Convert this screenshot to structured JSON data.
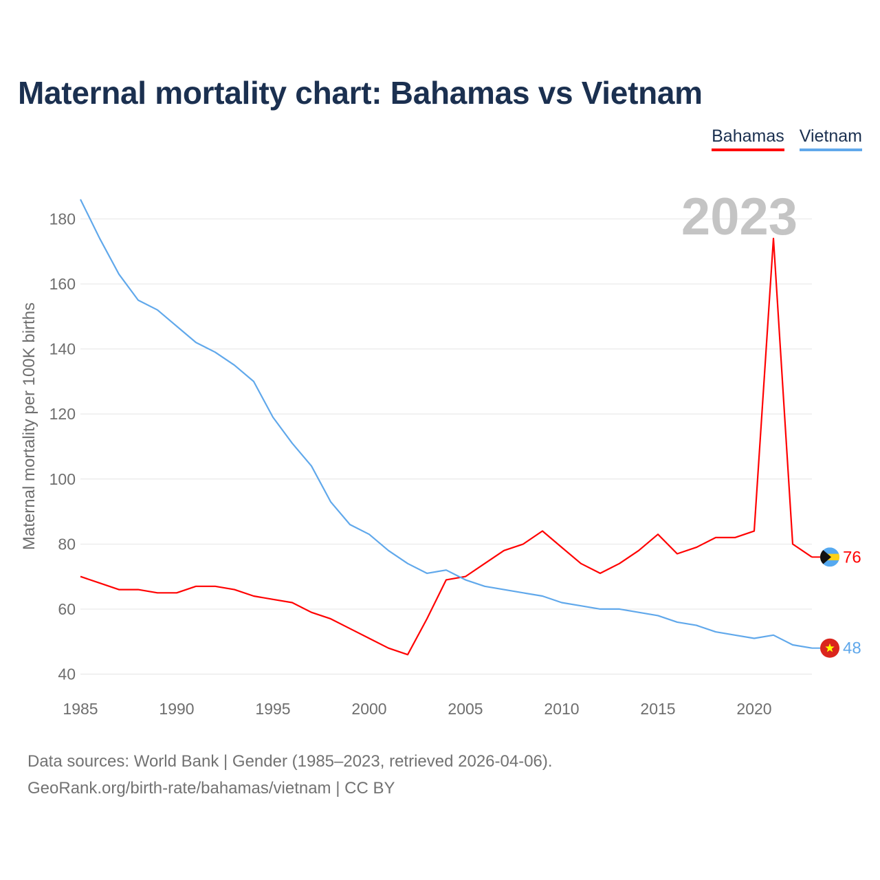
{
  "title": "Maternal mortality chart: Bahamas vs Vietnam",
  "legend": [
    {
      "label": "Bahamas",
      "color": "#ff0000"
    },
    {
      "label": "Vietnam",
      "color": "#60a8eb"
    }
  ],
  "year_label": "2023",
  "source": {
    "line1": "Data sources: World Bank | Gender (1985–2023, retrieved 2026-04-06).",
    "line2": "GeoRank.org/birth-rate/bahamas/vietnam | CC BY"
  },
  "chart_data": {
    "type": "line",
    "title": "Maternal mortality chart: Bahamas vs Vietnam",
    "xlabel": "",
    "ylabel": "Maternal mortality per 100K births",
    "xlim": [
      1985,
      2023
    ],
    "ylim": [
      38,
      186
    ],
    "x_ticks": [
      1985,
      1990,
      1995,
      2000,
      2005,
      2010,
      2015,
      2020
    ],
    "y_ticks": [
      40,
      60,
      80,
      100,
      120,
      140,
      160,
      180
    ],
    "grid": true,
    "x": [
      1985,
      1986,
      1987,
      1988,
      1989,
      1990,
      1991,
      1992,
      1993,
      1994,
      1995,
      1996,
      1997,
      1998,
      1999,
      2000,
      2001,
      2002,
      2003,
      2004,
      2005,
      2006,
      2007,
      2008,
      2009,
      2010,
      2011,
      2012,
      2013,
      2014,
      2015,
      2016,
      2017,
      2018,
      2019,
      2020,
      2021,
      2022,
      2023
    ],
    "series": [
      {
        "name": "Bahamas",
        "color": "#ff0000",
        "end_label": "76",
        "flag": "bahamas-flag",
        "values": [
          70,
          68,
          66,
          66,
          65,
          65,
          67,
          67,
          66,
          64,
          63,
          62,
          59,
          57,
          54,
          51,
          48,
          46,
          57,
          69,
          70,
          74,
          78,
          80,
          84,
          79,
          74,
          71,
          74,
          78,
          83,
          77,
          79,
          82,
          82,
          84,
          174,
          80,
          76
        ]
      },
      {
        "name": "Vietnam",
        "color": "#60a8eb",
        "end_label": "48",
        "flag": "vietnam-flag",
        "values": [
          186,
          174,
          163,
          155,
          152,
          147,
          142,
          139,
          135,
          130,
          119,
          111,
          104,
          93,
          86,
          83,
          78,
          74,
          71,
          72,
          69,
          67,
          66,
          65,
          64,
          62,
          61,
          60,
          60,
          59,
          58,
          56,
          55,
          53,
          52,
          51,
          52,
          49,
          48
        ]
      }
    ]
  }
}
